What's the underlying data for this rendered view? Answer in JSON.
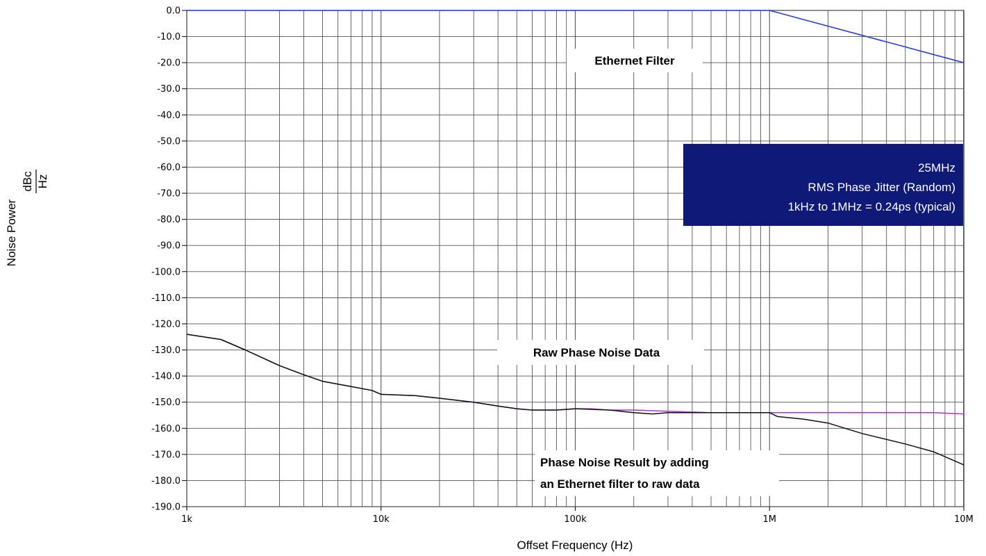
{
  "chart_data": {
    "type": "line",
    "xscale": "log",
    "xlim": [
      1000,
      10000000
    ],
    "ylim": [
      -190,
      0
    ],
    "grid": true,
    "xlabel": "Offset Frequency (Hz)",
    "ylabel": "Noise Power",
    "ylabel_unit_num": "dBc",
    "ylabel_unit_den": "Hz",
    "xticks": [
      {
        "value": 1000,
        "label": "1k"
      },
      {
        "value": 10000,
        "label": "10k"
      },
      {
        "value": 100000,
        "label": "100k"
      },
      {
        "value": 1000000,
        "label": "1M"
      },
      {
        "value": 10000000,
        "label": "10M"
      }
    ],
    "yticks": [
      "0.0",
      "-10.0",
      "-20.0",
      "-30.0",
      "-40.0",
      "-50.0",
      "-60.0",
      "-70.0",
      "-80.0",
      "-90.0",
      "-100.0",
      "-110.0",
      "-120.0",
      "-130.0",
      "-140.0",
      "-150.0",
      "-160.0",
      "-170.0",
      "-180.0",
      "-190.0"
    ],
    "series": [
      {
        "color": "#2a3fe0",
        "x": [
          1000,
          1000000,
          10000000
        ],
        "y": [
          0,
          0,
          -20
        ]
      },
      {
        "color": "#b030d8",
        "x": [
          1000,
          1500,
          2000,
          3000,
          4000,
          5000,
          7000,
          9000,
          10000,
          15000,
          20000,
          30000,
          40000,
          50000,
          60000,
          80000,
          100000,
          120000,
          150000,
          200000,
          300000,
          500000,
          700000,
          1000000,
          2000000,
          5000000,
          7000000,
          10000000
        ],
        "y": [
          -124,
          -126,
          -130,
          -136,
          -139.5,
          -142,
          -144,
          -145.5,
          -147,
          -147.5,
          -148.5,
          -150,
          -151.5,
          -152.5,
          -153,
          -153,
          -152.5,
          -152.5,
          -153,
          -153,
          -153.5,
          -154,
          -154,
          -154,
          -154,
          -154,
          -154,
          -154.5
        ]
      },
      {
        "color": "#111111",
        "x": [
          1000,
          1500,
          2000,
          3000,
          4000,
          5000,
          7000,
          9000,
          10000,
          15000,
          20000,
          30000,
          40000,
          50000,
          60000,
          80000,
          100000,
          150000,
          200000,
          250000,
          300000,
          500000,
          700000,
          1000000,
          1100000,
          1500000,
          2000000,
          3000000,
          5000000,
          7000000,
          10000000
        ],
        "y": [
          -124,
          -126,
          -130,
          -136,
          -139.5,
          -142,
          -144,
          -145.5,
          -147,
          -147.5,
          -148.5,
          -150,
          -151.5,
          -152.5,
          -153,
          -153,
          -152.5,
          -153,
          -154,
          -154.5,
          -154,
          -154,
          -154,
          -154,
          -155.5,
          -156.5,
          -158,
          -162,
          -166,
          -169,
          -174
        ]
      }
    ],
    "annotations": [
      {
        "text": "Ethernet Filter"
      },
      {
        "text": "Raw Phase Noise Data"
      },
      {
        "text": "Phase Noise Result by adding"
      },
      {
        "text": "an Ethernet filter to raw data"
      }
    ],
    "info_box": {
      "background": "#0f1a78",
      "lines": [
        "25MHz",
        "RMS Phase Jitter (Random)",
        "1kHz to 1MHz = 0.24ps (typical)"
      ]
    }
  }
}
